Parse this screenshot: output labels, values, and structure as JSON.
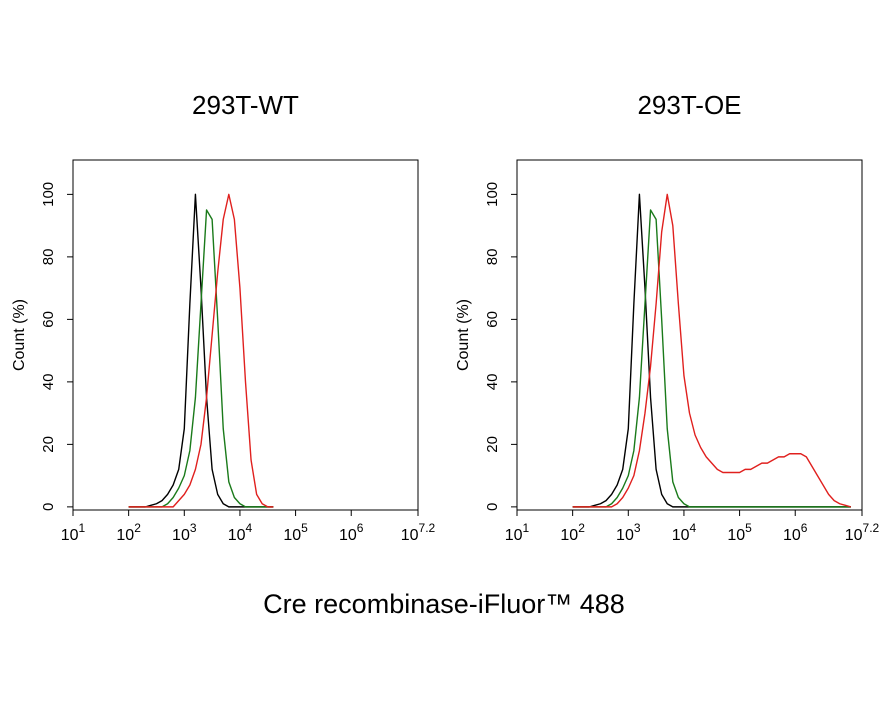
{
  "xlabel": "Cre recombinase-iFluor™ 488",
  "chart_data": [
    {
      "type": "line",
      "title": "293T-WT",
      "ylabel": "Count (%)",
      "xscale": "log",
      "xlim": [
        10,
        15848932
      ],
      "ylim": [
        -1,
        111
      ],
      "xticks": [
        {
          "value": 10,
          "label": "10^1"
        },
        {
          "value": 100,
          "label": "10^2"
        },
        {
          "value": 1000,
          "label": "10^3"
        },
        {
          "value": 10000,
          "label": "10^4"
        },
        {
          "value": 100000,
          "label": "10^5"
        },
        {
          "value": 1000000,
          "label": "10^6"
        },
        {
          "value": 15848932,
          "label": "10^7.2"
        }
      ],
      "yticks": [
        0,
        20,
        40,
        60,
        80,
        100
      ],
      "x": [
        100,
        126,
        158,
        200,
        251,
        316,
        398,
        501,
        631,
        794,
        1000,
        1259,
        1585,
        1995,
        2512,
        3162,
        3981,
        5012,
        6310,
        7943,
        10000,
        12589,
        15849,
        19953,
        25119,
        31623,
        39811
      ],
      "series": [
        {
          "color": "#000000",
          "values": [
            0,
            0,
            0,
            0,
            0.5,
            1,
            2,
            4,
            7,
            12,
            25,
            65,
            100,
            70,
            35,
            12,
            4,
            1,
            0,
            0,
            0,
            0,
            0,
            0,
            0,
            0,
            0
          ]
        },
        {
          "color": "#1a7a1a",
          "values": [
            0,
            0,
            0,
            0,
            0,
            0,
            0,
            1,
            3,
            6,
            10,
            18,
            35,
            65,
            95,
            92,
            60,
            25,
            8,
            3,
            1,
            0,
            0,
            0,
            0,
            0,
            0
          ]
        },
        {
          "color": "#e0201e",
          "values": [
            0,
            0,
            0,
            0,
            0,
            0,
            0,
            0,
            0,
            2,
            4,
            7,
            12,
            20,
            35,
            55,
            75,
            92,
            100,
            92,
            70,
            40,
            15,
            4,
            1,
            0,
            0
          ]
        }
      ]
    },
    {
      "type": "line",
      "title": "293T-OE",
      "ylabel": "Count (%)",
      "xscale": "log",
      "xlim": [
        10,
        15848932
      ],
      "ylim": [
        -1,
        111
      ],
      "xticks": [
        {
          "value": 10,
          "label": "10^1"
        },
        {
          "value": 100,
          "label": "10^2"
        },
        {
          "value": 1000,
          "label": "10^3"
        },
        {
          "value": 10000,
          "label": "10^4"
        },
        {
          "value": 100000,
          "label": "10^5"
        },
        {
          "value": 1000000,
          "label": "10^6"
        },
        {
          "value": 15848932,
          "label": "10^7.2"
        }
      ],
      "yticks": [
        0,
        20,
        40,
        60,
        80,
        100
      ],
      "x": [
        100,
        126,
        158,
        200,
        251,
        316,
        398,
        501,
        631,
        794,
        1000,
        1259,
        1585,
        1995,
        2512,
        3162,
        3981,
        5012,
        6310,
        7943,
        10000,
        12589,
        15849,
        19953,
        25119,
        31623,
        39811,
        50119,
        63096,
        79433,
        100000,
        125893,
        158489,
        199526,
        251189,
        316228,
        398107,
        501187,
        630957,
        794328,
        1000000,
        1258925,
        1584893,
        1995262,
        2511886,
        3162278,
        3981072,
        5011872,
        6309573,
        7943282,
        10000000
      ],
      "series": [
        {
          "color": "#000000",
          "values": [
            0,
            0,
            0,
            0,
            0.5,
            1,
            2,
            4,
            7,
            12,
            25,
            65,
            100,
            70,
            35,
            12,
            4,
            1,
            0,
            0,
            0,
            0,
            0,
            0,
            0,
            0,
            0,
            0,
            0,
            0,
            0,
            0,
            0,
            0,
            0,
            0,
            0,
            0,
            0,
            0,
            0,
            0,
            0,
            0,
            0,
            0,
            0,
            0,
            0,
            0,
            0
          ]
        },
        {
          "color": "#1a7a1a",
          "values": [
            0,
            0,
            0,
            0,
            0,
            0,
            0,
            1,
            3,
            6,
            10,
            18,
            35,
            65,
            95,
            92,
            60,
            25,
            8,
            3,
            1,
            0,
            0,
            0,
            0,
            0,
            0,
            0,
            0,
            0,
            0,
            0,
            0,
            0,
            0,
            0,
            0,
            0,
            0,
            0,
            0,
            0,
            0,
            0,
            0,
            0,
            0,
            0,
            0,
            0,
            0
          ]
        },
        {
          "color": "#e0201e",
          "values": [
            0,
            0,
            0,
            0,
            0,
            0,
            0,
            0,
            1,
            3,
            6,
            10,
            18,
            30,
            45,
            65,
            88,
            100,
            90,
            65,
            42,
            30,
            23,
            19,
            16,
            14,
            12,
            11,
            11,
            11,
            11,
            12,
            12,
            13,
            14,
            14,
            15,
            16,
            16,
            17,
            17,
            17,
            16,
            13,
            10,
            7,
            4,
            2,
            1,
            0.5,
            0
          ]
        }
      ]
    }
  ]
}
